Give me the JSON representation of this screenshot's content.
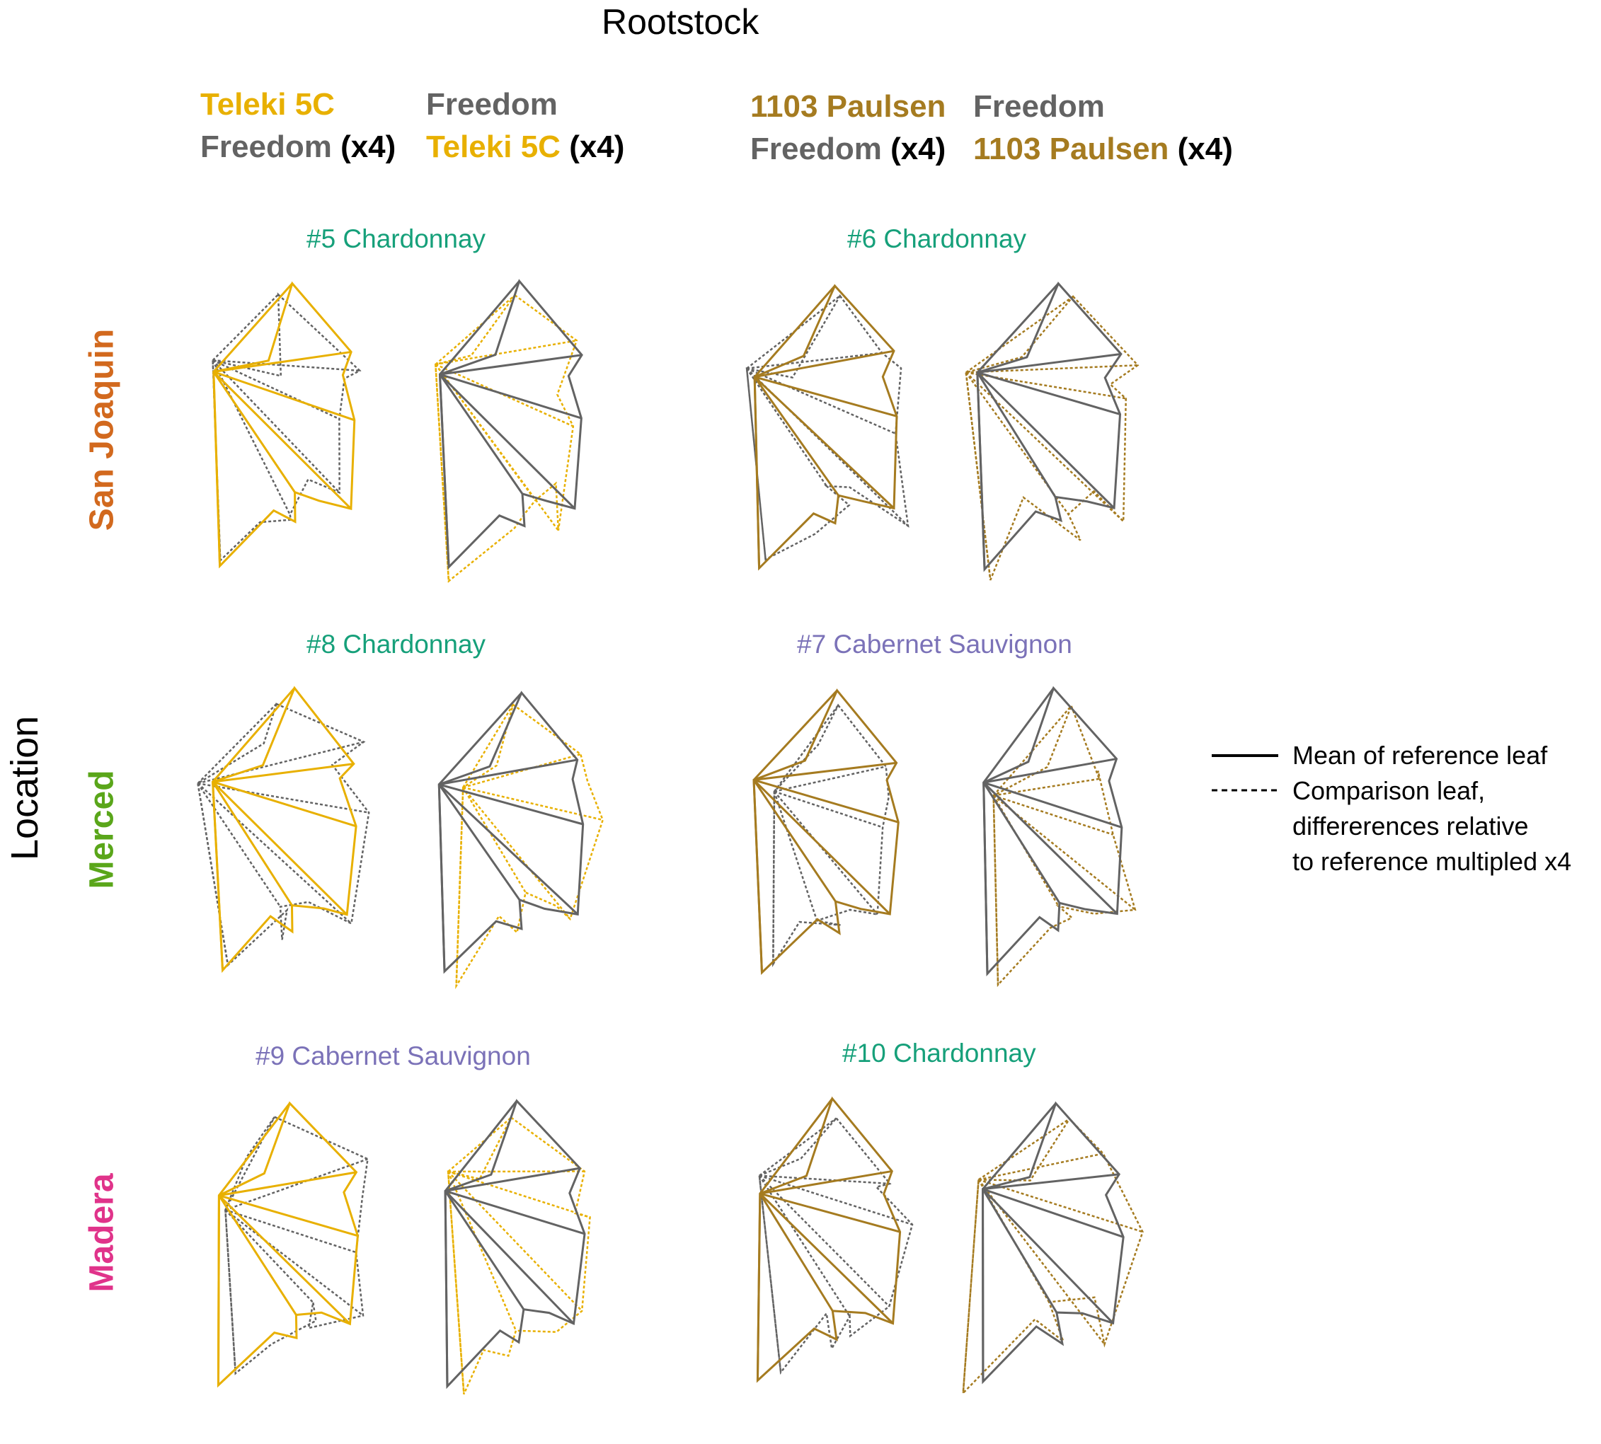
{
  "title": "Rootstock",
  "axis_label": "Location",
  "colors": {
    "teleki": "#E8B000",
    "freedom": "#636363",
    "paulsen": "#A57B20",
    "black": "#000000",
    "chardonnay": "#16A07A",
    "cabernet": "#7B72B8",
    "san_joaquin": "#D2691E",
    "merced": "#5AA61A",
    "madera": "#E0338A"
  },
  "rootstock_headers": [
    {
      "line1": "Teleki 5C",
      "line1_color": "teleki",
      "line2": "Freedom",
      "line2_color": "freedom",
      "suffix": "(x4)"
    },
    {
      "line1": "Freedom",
      "line1_color": "freedom",
      "line2": "Teleki 5C",
      "line2_color": "teleki",
      "suffix": "(x4)"
    },
    {
      "line1": "1103 Paulsen",
      "line1_color": "paulsen",
      "line2": "Freedom",
      "line2_color": "freedom",
      "suffix": "(x4)"
    },
    {
      "line1": "Freedom",
      "line1_color": "freedom",
      "line2": "1103 Paulsen",
      "line2_color": "paulsen",
      "suffix": "(x4)"
    }
  ],
  "locations": [
    "San Joaquin",
    "Merced",
    "Madera"
  ],
  "panels": [
    {
      "label": "#5 Chardonnay",
      "variety": "chardonnay"
    },
    {
      "label": "#6 Chardonnay",
      "variety": "chardonnay"
    },
    {
      "label": "#8 Chardonnay",
      "variety": "chardonnay"
    },
    {
      "label": "#7 Cabernet Sauvignon",
      "variety": "cabernet"
    },
    {
      "label": "#9 Cabernet Sauvignon",
      "variety": "cabernet"
    },
    {
      "label": "#10 Chardonnay",
      "variety": "chardonnay"
    }
  ],
  "legend": {
    "solid": "Mean of reference leaf",
    "dashed_lines": [
      "Comparison leaf,",
      "differerences relative",
      "to reference multipled x4"
    ]
  }
}
